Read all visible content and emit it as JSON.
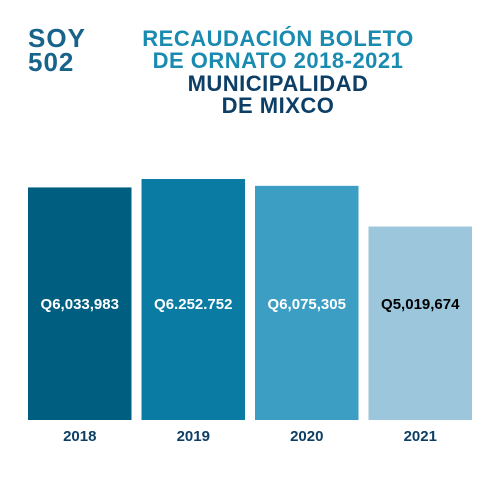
{
  "logo": [
    "SOY",
    "502"
  ],
  "chart_data": {
    "type": "bar",
    "title": [
      "RECAUDACIÓN BOLETO",
      "DE ORNATO 2018-2021"
    ],
    "subtitle": [
      "MUNICIPALIDAD",
      "DE MIXCO"
    ],
    "categories": [
      "2018",
      "2019",
      "2020",
      "2021"
    ],
    "values": [
      6033983,
      6252752,
      6075305,
      5019674
    ],
    "value_labels": [
      "Q6,033,983",
      "Q6.252.752",
      "Q6,075,305",
      "Q5,019,674"
    ],
    "colors": [
      "#005f80",
      "#0a7ca3",
      "#3d9ec4",
      "#9cc6dc"
    ],
    "value_label_colors": [
      "#ffffff",
      "#ffffff",
      "#ffffff",
      "#000000"
    ]
  }
}
